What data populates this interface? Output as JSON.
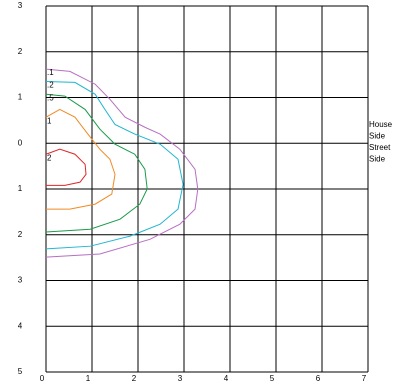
{
  "chart_data": {
    "type": "line",
    "xlim": [
      0,
      7
    ],
    "ylim": [
      -5,
      3
    ],
    "xticks": [
      0,
      1,
      2,
      3,
      4,
      5,
      6,
      7
    ],
    "yticks": [
      {
        "value": 3,
        "label": "3"
      },
      {
        "value": 2,
        "label": "2"
      },
      {
        "value": 1,
        "label": "1"
      },
      {
        "value": 0,
        "label": "0"
      },
      {
        "value": -1,
        "label": "1"
      },
      {
        "value": -2,
        "label": "2"
      },
      {
        "value": -3,
        "label": "3"
      },
      {
        "value": -4,
        "label": "4"
      },
      {
        "value": -5,
        "label": "5"
      }
    ],
    "grid": true,
    "annotation": [
      "House",
      "Side",
      "Street",
      "Side"
    ],
    "series": [
      {
        "name": ".1",
        "color": "#b86fc4",
        "x": [
          0,
          0.52,
          1.07,
          1.39,
          1.72,
          2.15,
          2.48,
          2.91,
          3.24,
          3.3,
          3.24,
          2.91,
          2.26,
          1.17,
          0
        ],
        "values": [
          1.62,
          1.57,
          1.29,
          0.96,
          0.57,
          0.35,
          0.2,
          -0.13,
          -0.57,
          -1.0,
          -1.44,
          -1.77,
          -2.1,
          -2.42,
          -2.49
        ]
      },
      {
        "name": ".2",
        "color": "#1fb5d3",
        "x": [
          0,
          0.63,
          1.07,
          1.28,
          1.5,
          1.93,
          2.48,
          2.87,
          2.98,
          2.87,
          2.48,
          1.83,
          0.96,
          0
        ],
        "values": [
          1.35,
          1.33,
          1.07,
          0.74,
          0.41,
          0.2,
          -0.02,
          -0.35,
          -0.9,
          -1.44,
          -1.77,
          -2.03,
          -2.25,
          -2.31
        ]
      },
      {
        "name": ".5",
        "color": "#1a9b4a",
        "x": [
          0,
          0.41,
          0.85,
          1.17,
          1.5,
          1.93,
          2.15,
          2.2,
          2.04,
          1.61,
          0.96,
          0
        ],
        "values": [
          1.07,
          1.03,
          0.74,
          0.31,
          -0.02,
          -0.24,
          -0.57,
          -1.0,
          -1.33,
          -1.66,
          -1.88,
          -1.94
        ]
      },
      {
        "name": "1",
        "color": "#f08a24",
        "x": [
          0,
          0.3,
          0.63,
          0.91,
          1.17,
          1.39,
          1.5,
          1.43,
          1.07,
          0.52,
          0
        ],
        "values": [
          0.57,
          0.74,
          0.57,
          0.2,
          -0.13,
          -0.35,
          -0.68,
          -1.11,
          -1.33,
          -1.44,
          -1.44
        ]
      },
      {
        "name": "2",
        "color": "#e0262a",
        "x": [
          0,
          0.3,
          0.63,
          0.85,
          0.87,
          0.74,
          0.41,
          0
        ],
        "values": [
          -0.24,
          -0.13,
          -0.24,
          -0.46,
          -0.68,
          -0.85,
          -0.92,
          -0.92
        ]
      }
    ]
  }
}
